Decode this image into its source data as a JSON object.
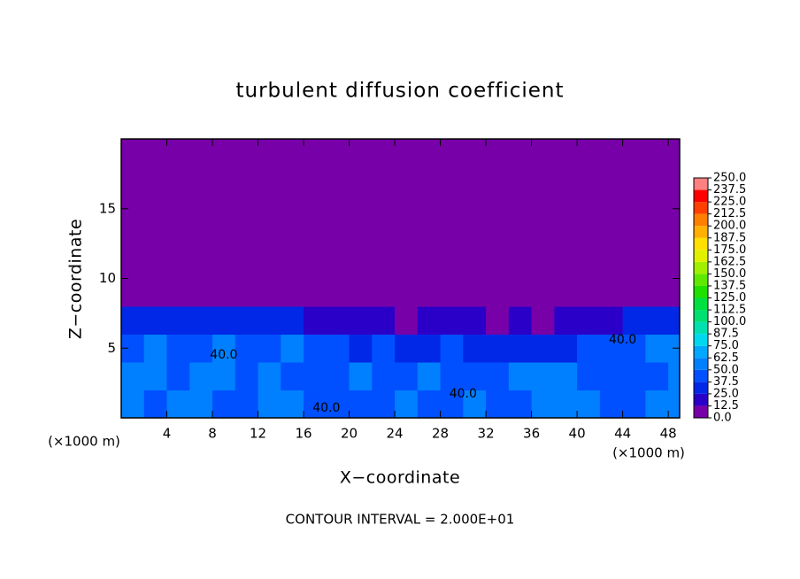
{
  "chart_data": {
    "type": "contour",
    "title": "turbulent diffusion coefficient",
    "xlabel": "X−coordinate",
    "ylabel": "Z−coordinate",
    "x_unit": "(×1000 m)",
    "y_unit": "(×1000 m)",
    "footnote": "CONTOUR INTERVAL = 2.000E+01",
    "xlim": [
      0,
      49
    ],
    "ylim": [
      0,
      20
    ],
    "xticks": [
      4,
      8,
      12,
      16,
      20,
      24,
      28,
      32,
      36,
      40,
      44,
      48
    ],
    "yticks": [
      5,
      10,
      15
    ],
    "x_edges": [
      0,
      2,
      4,
      6,
      8,
      10,
      12,
      14,
      16,
      18,
      20,
      22,
      24,
      26,
      28,
      30,
      32,
      34,
      36,
      38,
      40,
      42,
      44,
      46,
      48,
      50
    ],
    "z_edges": [
      0,
      2,
      4,
      6,
      8,
      10,
      12,
      14,
      16,
      18,
      20
    ],
    "values": [
      [
        55,
        45,
        50,
        60,
        45,
        40,
        55,
        50,
        40,
        45,
        40,
        45,
        50,
        40,
        45,
        50,
        40,
        45,
        55,
        50,
        60,
        45,
        40,
        50,
        55
      ],
      [
        60,
        50,
        45,
        55,
        50,
        45,
        50,
        45,
        40,
        45,
        50,
        40,
        45,
        50,
        45,
        40,
        45,
        55,
        60,
        50,
        45,
        45,
        40,
        45,
        60
      ],
      [
        45,
        50,
        45,
        40,
        50,
        45,
        40,
        50,
        45,
        40,
        35,
        40,
        35,
        30,
        40,
        35,
        30,
        35,
        30,
        35,
        40,
        40,
        45,
        50,
        55
      ],
      [
        30,
        35,
        35,
        30,
        30,
        25,
        30,
        25,
        20,
        20,
        15,
        15,
        10,
        15,
        20,
        15,
        10,
        15,
        10,
        15,
        15,
        20,
        25,
        25,
        30
      ],
      [
        0,
        0,
        0,
        0,
        0,
        0,
        0,
        0,
        0,
        0,
        0,
        0,
        0,
        0,
        0,
        0,
        0,
        0,
        0,
        0,
        0,
        0,
        0,
        0,
        0
      ],
      [
        0,
        0,
        0,
        0,
        0,
        0,
        0,
        0,
        0,
        0,
        0,
        0,
        0,
        0,
        0,
        0,
        0,
        0,
        0,
        0,
        0,
        0,
        0,
        0,
        0
      ],
      [
        0,
        0,
        0,
        0,
        0,
        0,
        0,
        0,
        0,
        0,
        0,
        0,
        0,
        0,
        0,
        0,
        0,
        0,
        0,
        0,
        0,
        0,
        0,
        0,
        0
      ],
      [
        0,
        0,
        0,
        0,
        0,
        0,
        0,
        0,
        0,
        0,
        0,
        0,
        0,
        0,
        0,
        0,
        0,
        0,
        0,
        0,
        0,
        0,
        0,
        0,
        0
      ],
      [
        0,
        0,
        0,
        0,
        0,
        0,
        0,
        0,
        0,
        0,
        0,
        0,
        0,
        0,
        0,
        0,
        0,
        0,
        0,
        0,
        0,
        0,
        0,
        0,
        0
      ],
      [
        0,
        0,
        0,
        0,
        0,
        0,
        0,
        0,
        0,
        0,
        0,
        0,
        0,
        0,
        0,
        0,
        0,
        0,
        0,
        0,
        0,
        0,
        0,
        0,
        0
      ]
    ],
    "contour_labels": [
      {
        "text": "40.0",
        "value": 40,
        "x": 44,
        "z": 5.6
      },
      {
        "text": "40.0",
        "value": 40,
        "x": 30,
        "z": 1.7
      },
      {
        "text": "40.0",
        "value": 40,
        "x": 18,
        "z": 0.7
      },
      {
        "text": "40.0",
        "value": 40,
        "x": 9,
        "z": 4.5
      }
    ],
    "levels": [
      {
        "value": 0,
        "label": "0.0"
      },
      12.5,
      {
        "value": 25,
        "label": "25.0"
      },
      37.5,
      {
        "value": 50,
        "label": "50.0"
      },
      62.5,
      {
        "value": 75,
        "label": "75.0"
      },
      87.5,
      {
        "value": 100,
        "label": "100.0"
      },
      112.5,
      {
        "value": 125,
        "label": "125.0"
      },
      137.5,
      {
        "value": 150,
        "label": "150.0"
      },
      162.5,
      {
        "value": 175,
        "label": "175.0"
      },
      187.5,
      {
        "value": 200,
        "label": "200.0"
      },
      212.5,
      {
        "value": 225,
        "label": "225.0"
      },
      237.5,
      {
        "value": 250,
        "label": "250.0"
      }
    ],
    "colors": [
      "#7800a8",
      "#2a00c8",
      "#0028e6",
      "#0050ff",
      "#0080ff",
      "#00a8ff",
      "#00d8f0",
      "#00e0b0",
      "#00e070",
      "#00e040",
      "#20e000",
      "#60e800",
      "#a0f000",
      "#e0f000",
      "#ffe000",
      "#ffb000",
      "#ff8000",
      "#ff4000",
      "#ff0000",
      "#ff8080"
    ]
  }
}
